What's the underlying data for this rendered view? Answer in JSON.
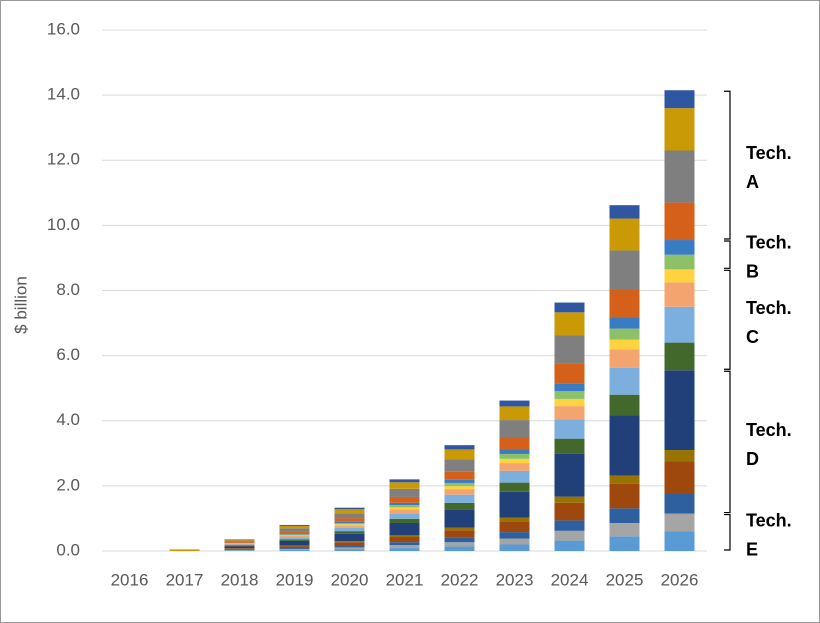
{
  "chart_data": {
    "type": "stacked_bar",
    "y_label": "$ billion",
    "categories": [
      "2016",
      "2017",
      "2018",
      "2019",
      "2020",
      "2021",
      "2022",
      "2023",
      "2024",
      "2025",
      "2026"
    ],
    "ylim": [
      0,
      16
    ],
    "grid": true,
    "yticks": [
      {
        "value": 0,
        "label": "0.0"
      },
      {
        "value": 2,
        "label": "2.0"
      },
      {
        "value": 4,
        "label": "4.0"
      },
      {
        "value": 6,
        "label": "6.0"
      },
      {
        "value": 8,
        "label": "8.0"
      },
      {
        "value": 10,
        "label": "10.0"
      },
      {
        "value": 12,
        "label": "12.0"
      },
      {
        "value": 14,
        "label": "14.0"
      },
      {
        "value": 16,
        "label": "16.0"
      }
    ],
    "series": [
      {
        "color": "#5b9bd5",
        "values": [
          0,
          0,
          0.02,
          0.03,
          0.06,
          0.09,
          0.14,
          0.2,
          0.32,
          0.45,
          0.6
        ]
      },
      {
        "color": "#a5a5a5",
        "values": [
          0,
          0,
          0.01,
          0.03,
          0.05,
          0.09,
          0.13,
          0.18,
          0.3,
          0.41,
          0.55
        ]
      },
      {
        "color": "#2e5f9e",
        "values": [
          0,
          0,
          0.02,
          0.03,
          0.06,
          0.09,
          0.14,
          0.2,
          0.32,
          0.45,
          0.6
        ]
      },
      {
        "color": "#9e480e",
        "values": [
          0,
          0,
          0.03,
          0.06,
          0.1,
          0.16,
          0.23,
          0.33,
          0.54,
          0.75,
          1.0
        ]
      },
      {
        "color": "#997300",
        "values": [
          0,
          0,
          0.01,
          0.02,
          0.03,
          0.05,
          0.08,
          0.11,
          0.19,
          0.26,
          0.35
        ]
      },
      {
        "color": "#213f78",
        "values": [
          0,
          0,
          0.06,
          0.14,
          0.23,
          0.38,
          0.56,
          0.8,
          1.32,
          1.84,
          2.45
        ]
      },
      {
        "color": "#43682b",
        "values": [
          0,
          0,
          0.02,
          0.05,
          0.08,
          0.13,
          0.2,
          0.28,
          0.46,
          0.64,
          0.85
        ]
      },
      {
        "color": "#7cafdd",
        "values": [
          0,
          0,
          0.03,
          0.06,
          0.1,
          0.17,
          0.25,
          0.36,
          0.59,
          0.83,
          1.1
        ]
      },
      {
        "color": "#f4a46e",
        "values": [
          0,
          0,
          0.02,
          0.04,
          0.07,
          0.12,
          0.17,
          0.24,
          0.41,
          0.56,
          0.75
        ]
      },
      {
        "color": "#ffd23f",
        "values": [
          0,
          0,
          0.01,
          0.02,
          0.04,
          0.06,
          0.09,
          0.13,
          0.22,
          0.3,
          0.4
        ]
      },
      {
        "color": "#8cc168",
        "values": [
          0,
          0,
          0.01,
          0.03,
          0.04,
          0.07,
          0.1,
          0.15,
          0.24,
          0.34,
          0.45
        ]
      },
      {
        "color": "#3a7cc4",
        "values": [
          0,
          0,
          0.01,
          0.03,
          0.04,
          0.07,
          0.1,
          0.15,
          0.24,
          0.34,
          0.45
        ]
      },
      {
        "color": "#d5601a",
        "values": [
          0,
          0,
          0.03,
          0.07,
          0.11,
          0.18,
          0.26,
          0.37,
          0.62,
          0.86,
          1.15
        ]
      },
      {
        "color": "#7f7f7f",
        "values": [
          0,
          0,
          0.04,
          0.09,
          0.15,
          0.25,
          0.37,
          0.52,
          0.86,
          1.2,
          1.6
        ]
      },
      {
        "color": "#c99a06",
        "values": [
          0,
          0.05,
          0.03,
          0.07,
          0.12,
          0.2,
          0.3,
          0.42,
          0.7,
          0.98,
          1.3
        ]
      },
      {
        "color": "#2f55a3",
        "values": [
          0,
          0,
          0.01,
          0.03,
          0.05,
          0.09,
          0.13,
          0.18,
          0.3,
          0.41,
          0.55
        ]
      }
    ],
    "annotations": [
      "Tech. A",
      "Tech. B",
      "Tech. C",
      "Tech. D",
      "Tech. E"
    ]
  }
}
